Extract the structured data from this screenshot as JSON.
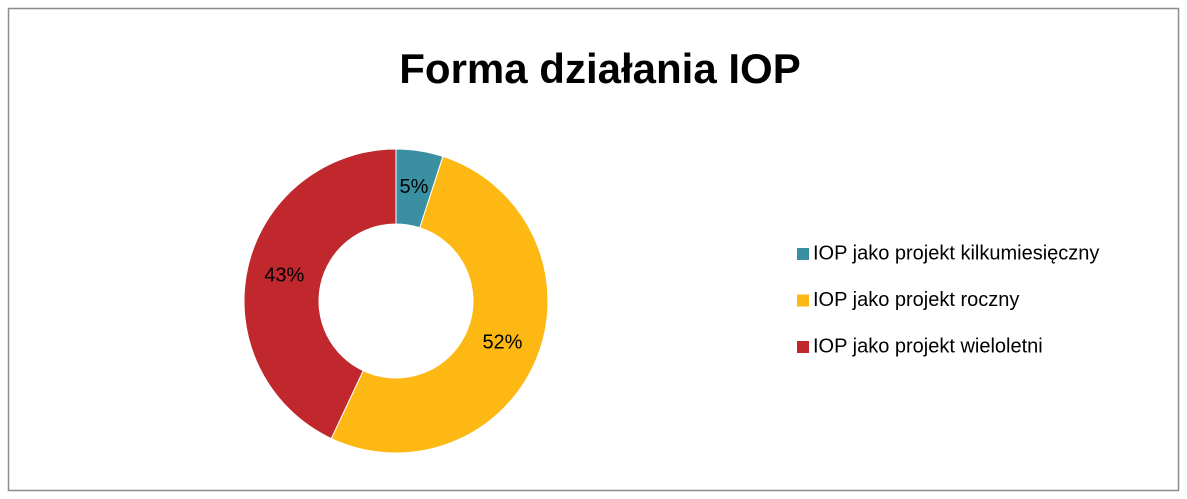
{
  "chart_data": {
    "type": "donut",
    "title": "Forma działania IOP",
    "categories": [
      "IOP jako projekt kilkumiesięczny",
      "IOP jako projekt roczny",
      "IOP jako projekt wieloletni"
    ],
    "values": [
      5,
      52,
      43
    ],
    "value_labels": [
      "5%",
      "52%",
      "43%"
    ],
    "colors": [
      "#3a8fa3",
      "#fdb813",
      "#c0282d"
    ],
    "legend": "right"
  }
}
